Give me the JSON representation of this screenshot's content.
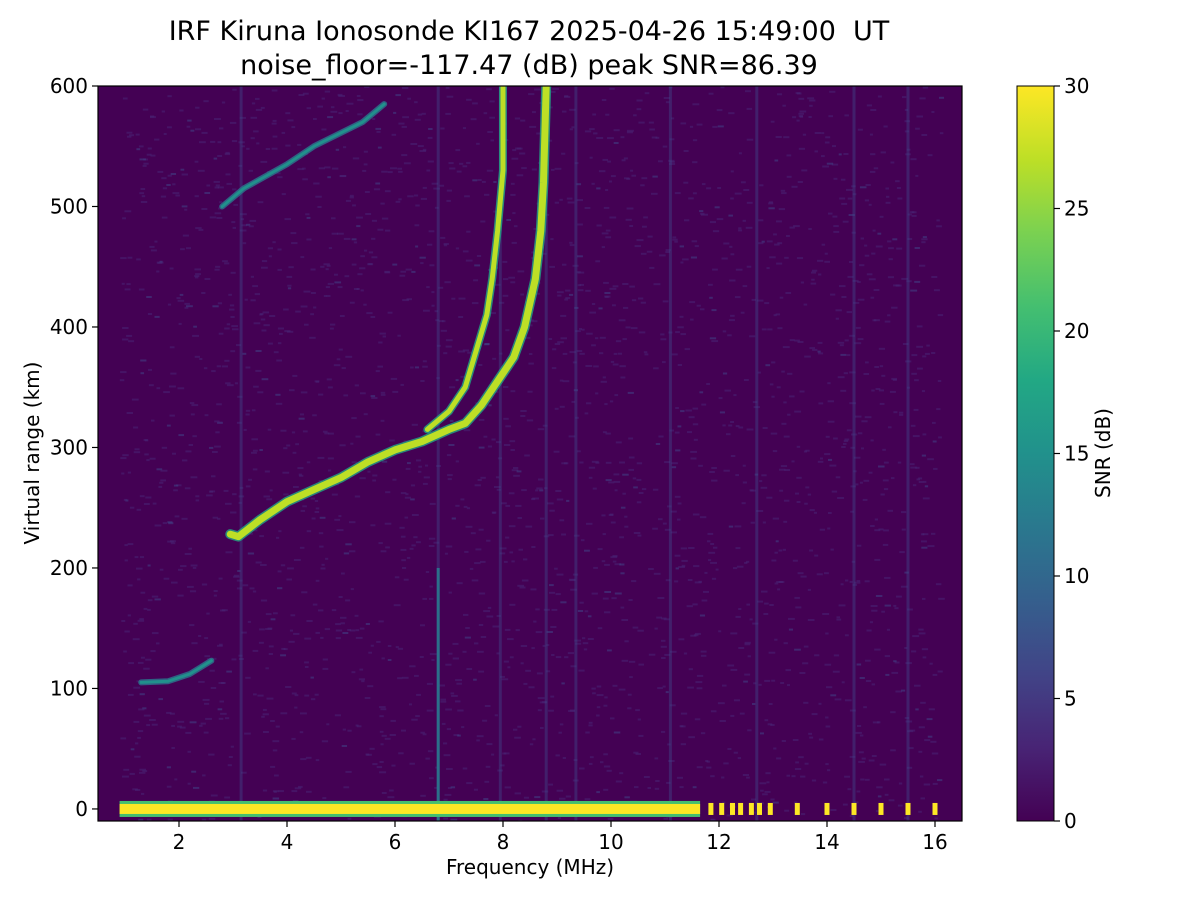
{
  "chart_data": {
    "type": "heatmap",
    "title": "IRF Kiruna Ionosonde KI167 2025-04-26 15:49:00  UT",
    "subtitle": "noise_floor=-117.47 (dB) peak SNR=86.39",
    "xlabel": "Frequency (MHz)",
    "ylabel": "Virtual range (km)",
    "xlim": [
      0.5,
      16.5
    ],
    "ylim": [
      -10,
      600
    ],
    "xticks": [
      2,
      4,
      6,
      8,
      10,
      12,
      14,
      16
    ],
    "yticks": [
      0,
      100,
      200,
      300,
      400,
      500,
      600
    ],
    "colorbar": {
      "label": "SNR (dB)",
      "range": [
        0,
        30
      ],
      "ticks": [
        0,
        5,
        10,
        15,
        20,
        25,
        30
      ],
      "colormap": "viridis"
    },
    "grid": false,
    "traces": [
      {
        "name": "F-layer ordinary trace",
        "points": [
          [
            2.95,
            228
          ],
          [
            3.1,
            226
          ],
          [
            3.5,
            240
          ],
          [
            4.0,
            255
          ],
          [
            4.5,
            265
          ],
          [
            5.0,
            275
          ],
          [
            5.5,
            288
          ],
          [
            6.0,
            298
          ],
          [
            6.5,
            305
          ],
          [
            7.0,
            315
          ],
          [
            7.3,
            320
          ],
          [
            7.6,
            335
          ],
          [
            7.9,
            355
          ],
          [
            8.2,
            375
          ],
          [
            8.4,
            400
          ],
          [
            8.5,
            420
          ],
          [
            8.6,
            440
          ],
          [
            8.7,
            480
          ],
          [
            8.75,
            520
          ],
          [
            8.8,
            600
          ]
        ]
      },
      {
        "name": "F-layer extraordinary trace",
        "points": [
          [
            6.6,
            315
          ],
          [
            7.0,
            330
          ],
          [
            7.3,
            350
          ],
          [
            7.5,
            380
          ],
          [
            7.7,
            410
          ],
          [
            7.8,
            440
          ],
          [
            7.9,
            480
          ],
          [
            8.0,
            530
          ],
          [
            8.0,
            600
          ]
        ]
      },
      {
        "name": "E-layer trace",
        "points": [
          [
            1.3,
            105
          ],
          [
            1.8,
            106
          ],
          [
            2.2,
            112
          ],
          [
            2.6,
            123
          ]
        ]
      },
      {
        "name": "second-hop echo",
        "points": [
          [
            2.8,
            500
          ],
          [
            3.2,
            515
          ],
          [
            4.0,
            535
          ],
          [
            4.5,
            550
          ],
          [
            5.4,
            570
          ],
          [
            5.8,
            585
          ]
        ]
      }
    ],
    "ground_band": {
      "y": 0,
      "freq_range": [
        0.9,
        16.1
      ]
    },
    "interference_lines_mhz": [
      3.15,
      6.8,
      7.95,
      8.8,
      9.35,
      11.1,
      12.7,
      14.5,
      15.5
    ]
  }
}
